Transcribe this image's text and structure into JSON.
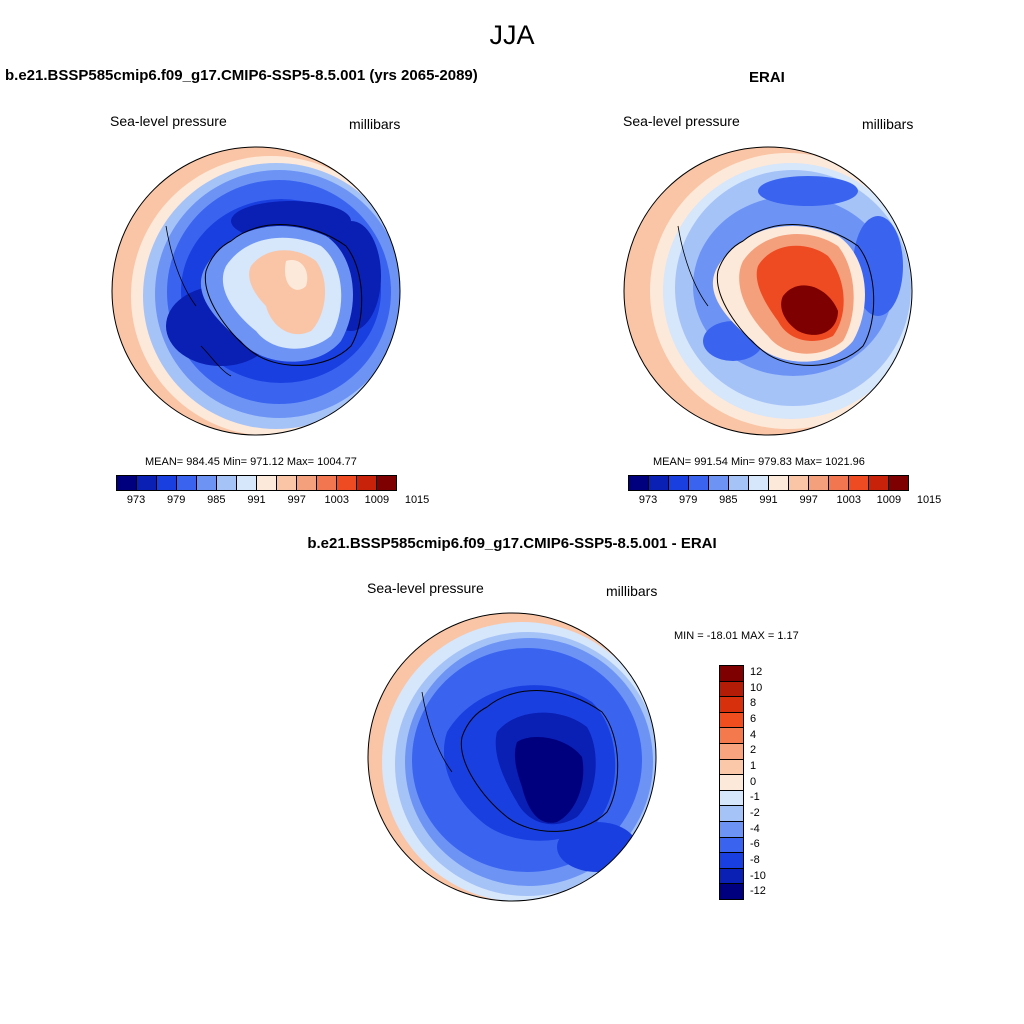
{
  "season": "JJA",
  "panels": [
    {
      "title": "b.e21.BSSP585cmip6.f09_g17.CMIP6-SSP5-8.5.001 (yrs 2065-2089)",
      "variable": "Sea-level pressure",
      "units": "millibars",
      "stats": "MEAN= 984.45  Min= 971.12  Max= 1004.77"
    },
    {
      "title": "ERAI",
      "variable": "Sea-level pressure",
      "units": "millibars",
      "stats": "MEAN= 991.54  Min= 979.83  Max= 1021.96"
    },
    {
      "title": "b.e21.BSSP585cmip6.f09_g17.CMIP6-SSP5-8.5.001 - ERAI",
      "variable": "Sea-level pressure",
      "units": "millibars",
      "stats": "MIN = -18.01 MAX =   1.17"
    }
  ],
  "abs_colorbar": {
    "tick_labels": [
      "973",
      "979",
      "985",
      "991",
      "997",
      "1003",
      "1009",
      "1015"
    ],
    "colors": [
      "#00007f",
      "#0a1fb3",
      "#1a3fe0",
      "#3a64f0",
      "#6d94f5",
      "#a6c3f8",
      "#d6e6fb",
      "#fde9d9",
      "#f9c5a6",
      "#f4a07c",
      "#f2764f",
      "#ee4b23",
      "#c9220b",
      "#7f0000"
    ]
  },
  "diff_colorbar": {
    "labels": [
      "12",
      "10",
      "8",
      "6",
      "4",
      "2",
      "1",
      "0",
      "-1",
      "-2",
      "-4",
      "-6",
      "-8",
      "-10",
      "-12"
    ],
    "colors": [
      "#7f0000",
      "#b31c07",
      "#d7300c",
      "#f04e1f",
      "#f47a4e",
      "#f8a47e",
      "#fbc9aa",
      "#fde9d9",
      "#d6e6fb",
      "#a6c3f8",
      "#6d94f5",
      "#3a64f0",
      "#1a3fe0",
      "#0a1fb3",
      "#00007f"
    ]
  }
}
